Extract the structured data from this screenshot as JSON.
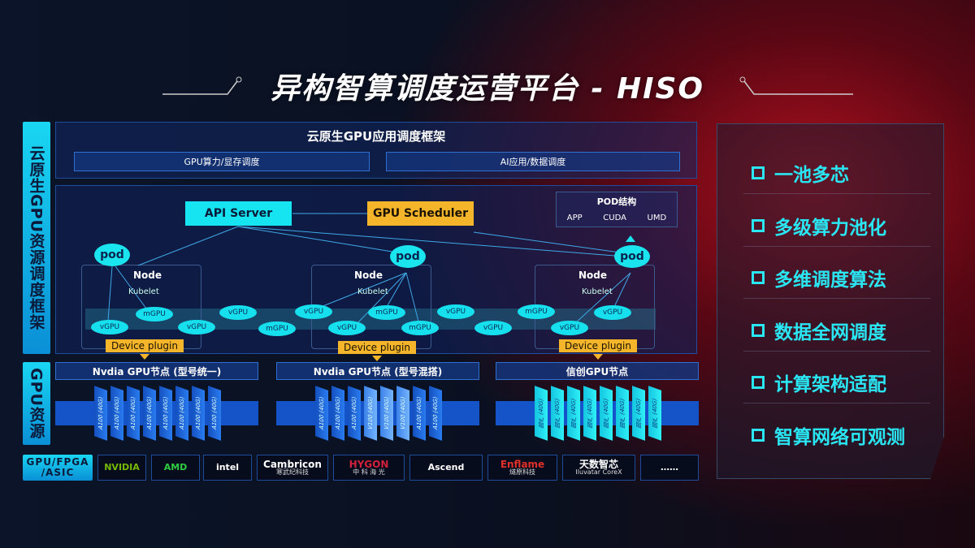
{
  "title": "异构智算调度运营平台 - HISO",
  "left_labels": {
    "framework": "云原生GPU资源调度框架",
    "gpu_resource": "GPU资源",
    "chip_types": "GPU/FPGA /ASIC"
  },
  "top_panel": {
    "title": "云原生GPU应用调度框架",
    "boxes": [
      "GPU算力/显存调度",
      "AI应用/数据调度"
    ]
  },
  "diagram": {
    "api_server": "API Server",
    "gpu_scheduler": "GPU Scheduler",
    "pod_structure": {
      "title": "POD结构",
      "items": [
        "APP",
        "CUDA",
        "UMD"
      ]
    },
    "pod": "pod",
    "node": "Node",
    "kubelet": "Kubelet",
    "device_plugin": "Device plugin",
    "units": [
      "vGPU",
      "mGPU",
      "vGPU",
      "vGPU",
      "mGPU",
      "vGPU",
      "vGPU",
      "mGPU",
      "mGPU",
      "vGPU",
      "vGPU",
      "mGPU",
      "vGPU",
      "vGPU"
    ]
  },
  "gpu_nodes": [
    {
      "title": "Nvdia GPU节点 (型号统一)",
      "cards": [
        "A100 (40G)",
        "A100 (40G)",
        "A100 (40G)",
        "A100 (40G)",
        "A100 (40G)",
        "A100 (40G)",
        "A100 (40G)",
        "A100 (40G)"
      ]
    },
    {
      "title": "Nvdia GPU节点 (型号混搭)",
      "cards": [
        "A100 (40G)",
        "A100 (40G)",
        "A100 (40G)",
        "V100 (40G)",
        "V100 (40G)",
        "V100 (40G)",
        "A100 (40G)",
        "A100 (40G)"
      ]
    },
    {
      "title": "信创GPU节点",
      "cards": [
        "国产 (40G)",
        "国产 (40G)",
        "国产 (40G)",
        "国产 (40G)",
        "国产 (40G)",
        "国产 (40G)",
        "国产 (40G)",
        "国产 (40G)"
      ]
    }
  ],
  "vendors": [
    {
      "name": "NVIDIA",
      "sub": "",
      "color": "#76b900"
    },
    {
      "name": "AMD",
      "sub": "",
      "color": "#2ecc40"
    },
    {
      "name": "intel",
      "sub": "",
      "color": "#ffffff"
    },
    {
      "name": "Cambricon",
      "sub": "寒武纪科技",
      "color": "#ffffff"
    },
    {
      "name": "HYGON",
      "sub": "中 科 海 光",
      "color": "#d0203a"
    },
    {
      "name": "Ascend",
      "sub": "",
      "color": "#ffffff"
    },
    {
      "name": "Enflame",
      "sub": "燧原科技",
      "color": "#e0302a"
    },
    {
      "name": "天数智芯",
      "sub": "Iluvatar CoreX",
      "color": "#ffffff"
    },
    {
      "name": "……",
      "sub": "",
      "color": "#ffffff"
    }
  ],
  "features": [
    "一池多芯",
    "多级算力池化",
    "多维调度算法",
    "数据全网调度",
    "计算架构适配",
    "智算网络可观测"
  ],
  "colors": {
    "accent": "#16e4f0",
    "gold": "#f4b52a",
    "blue": "#1454c8"
  }
}
